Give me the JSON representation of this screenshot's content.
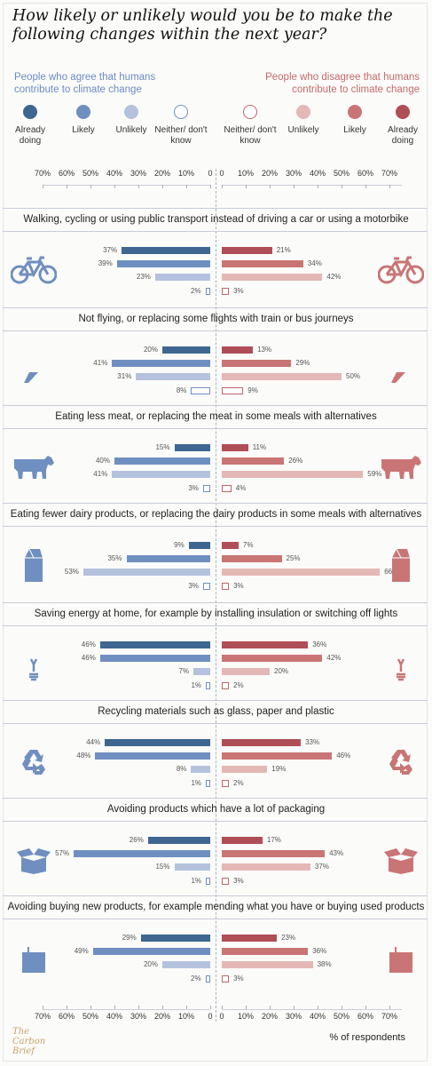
{
  "title": "How likely or unlikely would you be to make the following changes within the next year?",
  "groups": {
    "agree": "People who agree that humans contribute to climate change",
    "disagree": "People who disagree that humans contribute to climate change"
  },
  "legend": {
    "left": [
      {
        "label": "Already doing",
        "color": "#3e6690"
      },
      {
        "label": "Likely",
        "color": "#6f8fc0"
      },
      {
        "label": "Unlikely",
        "color": "#b4c2dd"
      },
      {
        "label": "Neither/ don't know",
        "color": "#ffffff",
        "border": "#6f8fc0"
      }
    ],
    "right": [
      {
        "label": "Neither/ don't know",
        "color": "#ffffff",
        "border": "#c0666a"
      },
      {
        "label": "Unlikely",
        "color": "#e4b8b6"
      },
      {
        "label": "Likely",
        "color": "#c97575"
      },
      {
        "label": "Already doing",
        "color": "#b04e58"
      }
    ]
  },
  "axis_ticks": [
    "70%",
    "60%",
    "50%",
    "40%",
    "30%",
    "20%",
    "10%",
    "0",
    "0",
    "10%",
    "20%",
    "30%",
    "40%",
    "50%",
    "60%",
    "70%"
  ],
  "footer": {
    "logo": [
      "The",
      "Carbon",
      "Brief"
    ],
    "note": "% of respondents"
  },
  "chart_data": {
    "type": "bar",
    "orientation": "horizontal",
    "unit": "% of respondents",
    "xlim": [
      0,
      70
    ],
    "response_order": [
      "Already doing",
      "Likely",
      "Unlikely",
      "Neither/ don't know"
    ],
    "sections": [
      {
        "title": "Walking, cycling or using public transport instead of driving a car or using a motorbike",
        "icon": "bicycle-icon",
        "agree": [
          37,
          39,
          23,
          2
        ],
        "disagree": [
          21,
          34,
          42,
          3
        ]
      },
      {
        "title": "Not flying, or replacing some flights with train or bus journeys",
        "icon": "airplane-icon",
        "agree": [
          20,
          41,
          31,
          8
        ],
        "disagree": [
          13,
          29,
          50,
          9
        ]
      },
      {
        "title": "Eating less meat, or replacing the meat in some meals with alternatives",
        "icon": "cow-icon",
        "agree": [
          15,
          40,
          41,
          3
        ],
        "disagree": [
          11,
          26,
          59,
          4
        ]
      },
      {
        "title": "Eating fewer dairy products, or replacing the dairy products in some meals with alternatives",
        "icon": "milk-carton-icon",
        "agree": [
          9,
          35,
          53,
          3
        ],
        "disagree": [
          7,
          25,
          66,
          3
        ]
      },
      {
        "title": "Saving energy at home, for example by installing insulation or switching off lights",
        "icon": "lightbulb-icon",
        "agree": [
          46,
          46,
          7,
          1
        ],
        "disagree": [
          36,
          42,
          20,
          2
        ]
      },
      {
        "title": "Recycling materials such as glass, paper and plastic",
        "icon": "recycle-icon",
        "agree": [
          44,
          48,
          8,
          1
        ],
        "disagree": [
          33,
          46,
          19,
          2
        ]
      },
      {
        "title": "Avoiding products which have a lot of packaging",
        "icon": "box-icon",
        "agree": [
          26,
          57,
          15,
          1
        ],
        "disagree": [
          17,
          43,
          37,
          3
        ]
      },
      {
        "title": "Avoiding buying new products, for example mending what you have or buying used products",
        "icon": "shopping-bag-icon",
        "agree": [
          29,
          49,
          20,
          2
        ],
        "disagree": [
          23,
          36,
          38,
          3
        ]
      }
    ]
  }
}
